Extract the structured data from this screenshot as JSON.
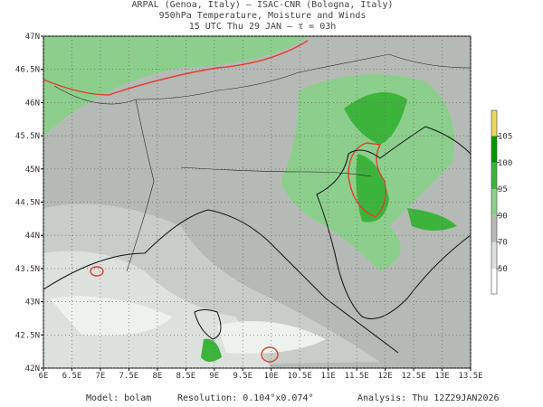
{
  "header": {
    "lines": [
      "ARPAL (Genoa, Italy)  —  ISAC-CNR (Bologna, Italy)",
      "950hPa Temperature, Moisture and Winds",
      "15 UTC Thu 29 JAN  —  τ = 03h"
    ]
  },
  "map": {
    "xlim": [
      6,
      13.5
    ],
    "ylim": [
      42,
      47
    ],
    "xticks": [
      {
        "value": 6,
        "label": "6E"
      },
      {
        "value": 6.5,
        "label": "6.5E"
      },
      {
        "value": 7,
        "label": "7E"
      },
      {
        "value": 7.5,
        "label": "7.5E"
      },
      {
        "value": 8,
        "label": "8E"
      },
      {
        "value": 8.5,
        "label": "8.5E"
      },
      {
        "value": 9,
        "label": "9E"
      },
      {
        "value": 9.5,
        "label": "9.5E"
      },
      {
        "value": 10,
        "label": "10E"
      },
      {
        "value": 10.5,
        "label": "10.5E"
      },
      {
        "value": 11,
        "label": "11E"
      },
      {
        "value": 11.5,
        "label": "11.5E"
      },
      {
        "value": 12,
        "label": "12E"
      },
      {
        "value": 12.5,
        "label": "12.5E"
      },
      {
        "value": 13,
        "label": "13E"
      },
      {
        "value": 13.5,
        "label": "13.5E"
      }
    ],
    "yticks": [
      {
        "value": 42,
        "label": "42N"
      },
      {
        "value": 42.5,
        "label": "42.5N"
      },
      {
        "value": 43,
        "label": "43N"
      },
      {
        "value": 43.5,
        "label": "43.5N"
      },
      {
        "value": 44,
        "label": "44N"
      },
      {
        "value": 44.5,
        "label": "44.5N"
      },
      {
        "value": 45,
        "label": "45N"
      },
      {
        "value": 45.5,
        "label": "45.5N"
      },
      {
        "value": 46,
        "label": "46N"
      },
      {
        "value": 46.5,
        "label": "46.5N"
      },
      {
        "value": 47,
        "label": "47N"
      }
    ]
  },
  "colorbar": {
    "ticks": [
      50,
      70,
      90,
      95,
      100,
      105
    ],
    "colors": [
      "#ffffff",
      "#dde1dd",
      "#b6bab6",
      "#8ccf8c",
      "#3cb43c",
      "#009600",
      "#e8d860"
    ]
  },
  "footer": {
    "model": "Model: bolam",
    "resolution": "Resolution: 0.104°x0.074°",
    "analysis": "Analysis: Thu 12Z29JAN2026"
  }
}
